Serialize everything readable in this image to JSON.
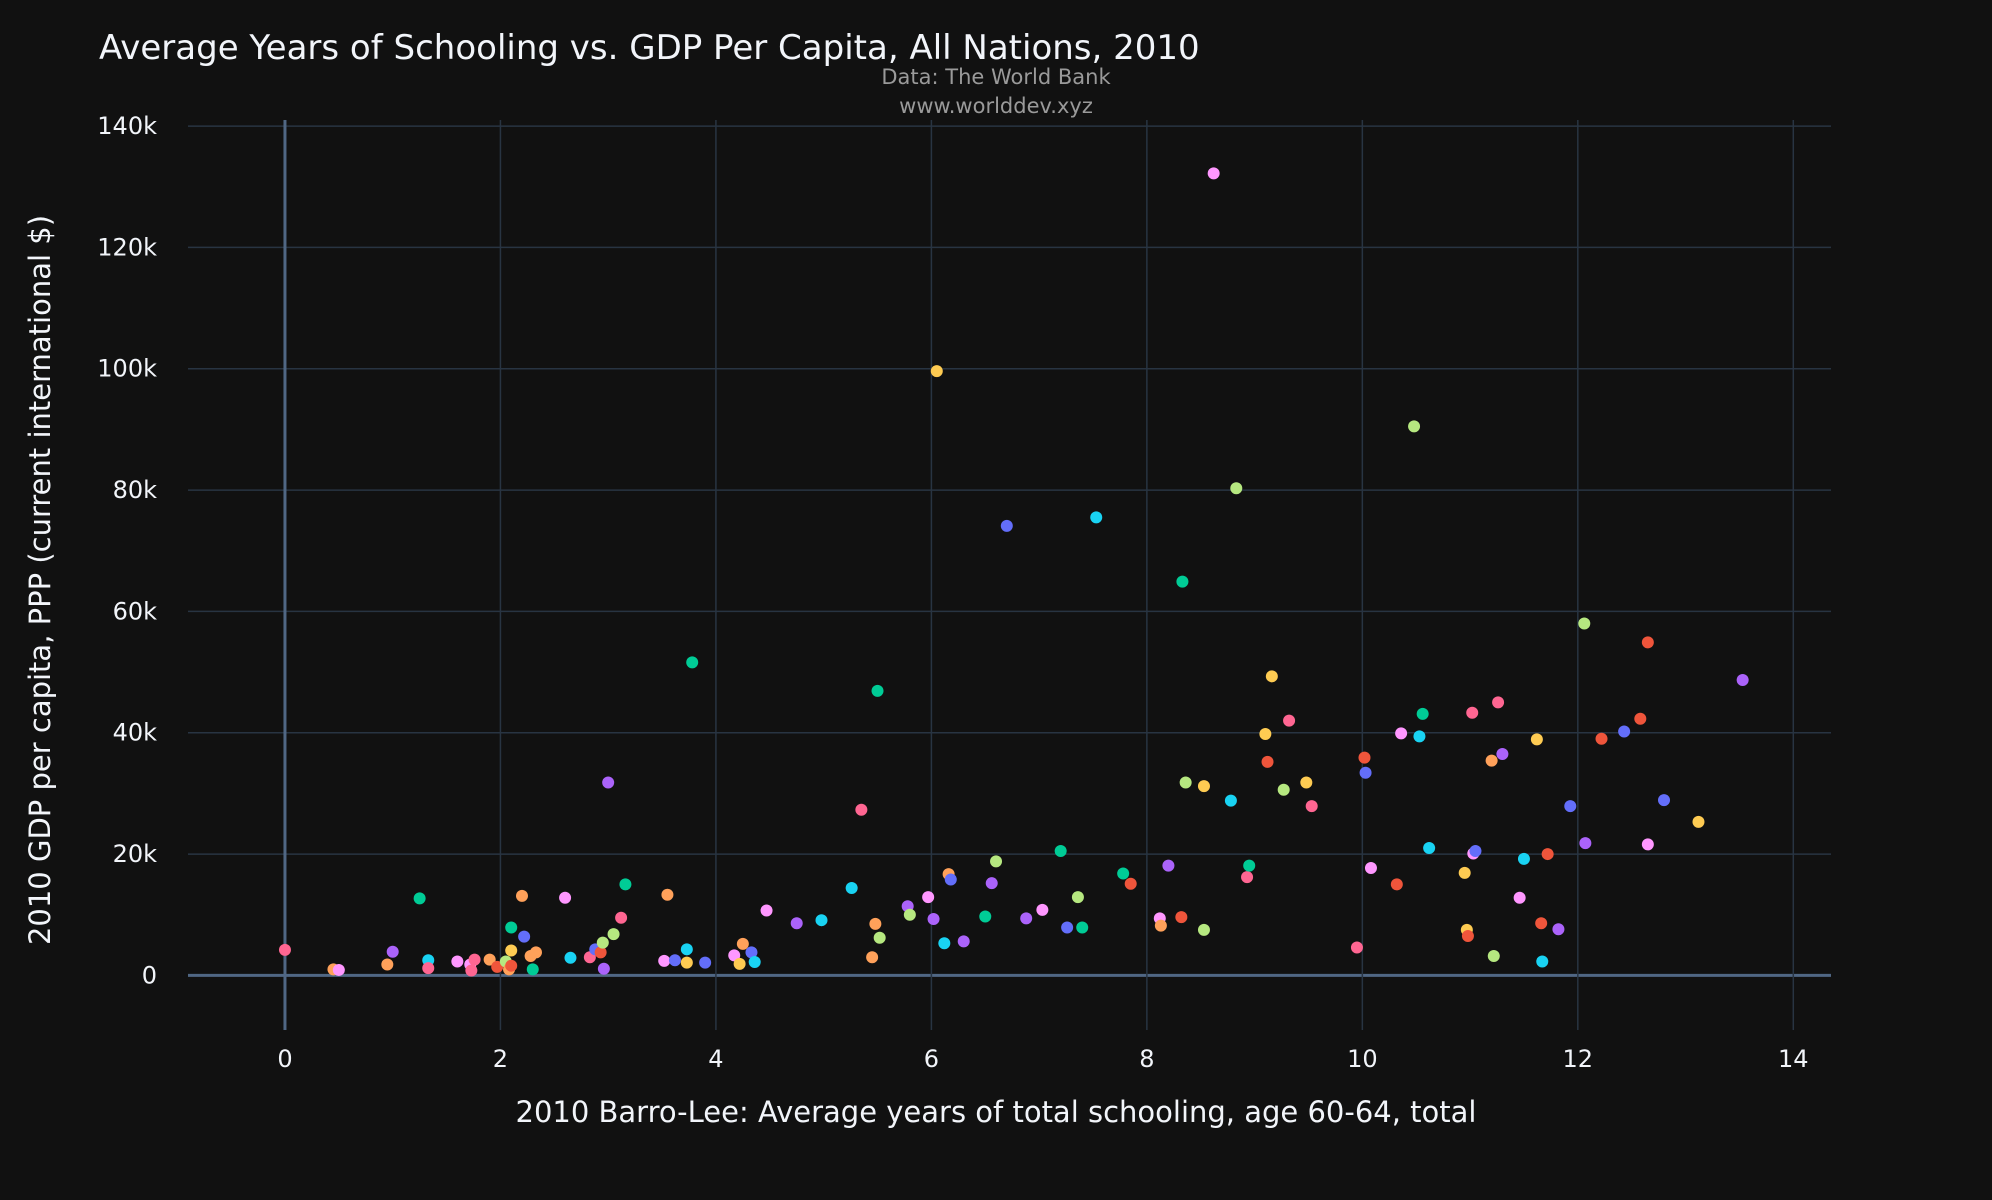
{
  "chart_data": {
    "type": "scatter",
    "title": "Average Years of Schooling vs. GDP Per Capita, All Nations, 2010",
    "subtitle_lines": [
      "Data: The World Bank",
      "www.worlddev.xyz"
    ],
    "xlabel": "2010 Barro-Lee: Average years of total schooling, age 60-64, total",
    "ylabel": "2010 GDP per capita, PPP (current international $)",
    "xlim": [
      -0.9,
      14.35
    ],
    "ylim": [
      -9000,
      141000
    ],
    "x_ticks": [
      {
        "v": 0,
        "label": "0"
      },
      {
        "v": 2,
        "label": "2"
      },
      {
        "v": 4,
        "label": "4"
      },
      {
        "v": 6,
        "label": "6"
      },
      {
        "v": 8,
        "label": "8"
      },
      {
        "v": 10,
        "label": "10"
      },
      {
        "v": 12,
        "label": "12"
      },
      {
        "v": 14,
        "label": "14"
      }
    ],
    "y_ticks": [
      {
        "v": 0,
        "label": "0"
      },
      {
        "v": 20000,
        "label": "20k"
      },
      {
        "v": 40000,
        "label": "40k"
      },
      {
        "v": 60000,
        "label": "60k"
      },
      {
        "v": 80000,
        "label": "80k"
      },
      {
        "v": 100000,
        "label": "100k"
      },
      {
        "v": 120000,
        "label": "120k"
      },
      {
        "v": 140000,
        "label": "140k"
      }
    ],
    "grid": true,
    "legend": "none",
    "colors": {
      "background": "#111111",
      "grid": "#283442",
      "zero_line": "#506784",
      "text": "#f2f5fa",
      "subtitle": "#9a9a9a"
    },
    "points": [
      {
        "x": 0.0,
        "y": 4200,
        "color": "#FF6692"
      },
      {
        "x": 0.45,
        "y": 1000,
        "color": "#FFA15A"
      },
      {
        "x": 0.5,
        "y": 900,
        "color": "#FF97FF"
      },
      {
        "x": 0.95,
        "y": 1800,
        "color": "#FFA15A"
      },
      {
        "x": 1.0,
        "y": 3900,
        "color": "#AB63FA"
      },
      {
        "x": 1.25,
        "y": 12700,
        "color": "#00CC96"
      },
      {
        "x": 1.33,
        "y": 2500,
        "color": "#19D3F3"
      },
      {
        "x": 1.33,
        "y": 1200,
        "color": "#FF6692"
      },
      {
        "x": 1.6,
        "y": 2300,
        "color": "#FF97FF"
      },
      {
        "x": 1.72,
        "y": 1800,
        "color": "#FF97FF"
      },
      {
        "x": 1.73,
        "y": 800,
        "color": "#FF6692"
      },
      {
        "x": 1.76,
        "y": 2600,
        "color": "#FF6692"
      },
      {
        "x": 1.9,
        "y": 2600,
        "color": "#FFA15A"
      },
      {
        "x": 1.97,
        "y": 1400,
        "color": "#EF553B"
      },
      {
        "x": 2.05,
        "y": 2300,
        "color": "#B6E880"
      },
      {
        "x": 2.08,
        "y": 1000,
        "color": "#FFA15A"
      },
      {
        "x": 2.1,
        "y": 1600,
        "color": "#EF553B"
      },
      {
        "x": 2.1,
        "y": 4100,
        "color": "#FECB52"
      },
      {
        "x": 2.1,
        "y": 7900,
        "color": "#00CC96"
      },
      {
        "x": 2.2,
        "y": 13100,
        "color": "#FFA15A"
      },
      {
        "x": 2.22,
        "y": 6400,
        "color": "#636EFA"
      },
      {
        "x": 2.28,
        "y": 3200,
        "color": "#FFA15A"
      },
      {
        "x": 2.3,
        "y": 1000,
        "color": "#00CC96"
      },
      {
        "x": 2.33,
        "y": 3800,
        "color": "#FFA15A"
      },
      {
        "x": 2.6,
        "y": 12800,
        "color": "#FF97FF"
      },
      {
        "x": 2.65,
        "y": 2900,
        "color": "#19D3F3"
      },
      {
        "x": 2.83,
        "y": 3000,
        "color": "#FF6692"
      },
      {
        "x": 2.88,
        "y": 4300,
        "color": "#636EFA"
      },
      {
        "x": 2.93,
        "y": 3800,
        "color": "#EF553B"
      },
      {
        "x": 2.95,
        "y": 5400,
        "color": "#B6E880"
      },
      {
        "x": 2.96,
        "y": 1100,
        "color": "#AB63FA"
      },
      {
        "x": 3.0,
        "y": 31800,
        "color": "#AB63FA"
      },
      {
        "x": 3.05,
        "y": 6800,
        "color": "#B6E880"
      },
      {
        "x": 3.12,
        "y": 9500,
        "color": "#FF6692"
      },
      {
        "x": 3.16,
        "y": 15000,
        "color": "#00CC96"
      },
      {
        "x": 3.52,
        "y": 2400,
        "color": "#FF97FF"
      },
      {
        "x": 3.55,
        "y": 13300,
        "color": "#FFA15A"
      },
      {
        "x": 3.62,
        "y": 2500,
        "color": "#636EFA"
      },
      {
        "x": 3.73,
        "y": 2100,
        "color": "#FECB52"
      },
      {
        "x": 3.73,
        "y": 4300,
        "color": "#19D3F3"
      },
      {
        "x": 3.78,
        "y": 51600,
        "color": "#00CC96"
      },
      {
        "x": 3.9,
        "y": 2100,
        "color": "#636EFA"
      },
      {
        "x": 4.17,
        "y": 3300,
        "color": "#FF97FF"
      },
      {
        "x": 4.22,
        "y": 1900,
        "color": "#FECB52"
      },
      {
        "x": 4.25,
        "y": 5200,
        "color": "#FFA15A"
      },
      {
        "x": 4.33,
        "y": 3800,
        "color": "#636EFA"
      },
      {
        "x": 4.36,
        "y": 2200,
        "color": "#19D3F3"
      },
      {
        "x": 4.47,
        "y": 10700,
        "color": "#FF97FF"
      },
      {
        "x": 4.75,
        "y": 8600,
        "color": "#AB63FA"
      },
      {
        "x": 4.98,
        "y": 9100,
        "color": "#19D3F3"
      },
      {
        "x": 5.26,
        "y": 14400,
        "color": "#19D3F3"
      },
      {
        "x": 5.35,
        "y": 27300,
        "color": "#FF6692"
      },
      {
        "x": 5.45,
        "y": 3000,
        "color": "#FFA15A"
      },
      {
        "x": 5.48,
        "y": 8500,
        "color": "#FFA15A"
      },
      {
        "x": 5.5,
        "y": 46900,
        "color": "#00CC96"
      },
      {
        "x": 5.52,
        "y": 6200,
        "color": "#B6E880"
      },
      {
        "x": 5.78,
        "y": 11400,
        "color": "#AB63FA"
      },
      {
        "x": 5.8,
        "y": 10000,
        "color": "#B6E880"
      },
      {
        "x": 5.97,
        "y": 12900,
        "color": "#FF97FF"
      },
      {
        "x": 6.02,
        "y": 9300,
        "color": "#AB63FA"
      },
      {
        "x": 6.05,
        "y": 99600,
        "color": "#FECB52"
      },
      {
        "x": 6.12,
        "y": 5300,
        "color": "#19D3F3"
      },
      {
        "x": 6.16,
        "y": 16700,
        "color": "#FFA15A"
      },
      {
        "x": 6.18,
        "y": 15800,
        "color": "#636EFA"
      },
      {
        "x": 6.3,
        "y": 5600,
        "color": "#AB63FA"
      },
      {
        "x": 6.5,
        "y": 9700,
        "color": "#00CC96"
      },
      {
        "x": 6.56,
        "y": 15200,
        "color": "#AB63FA"
      },
      {
        "x": 6.6,
        "y": 18800,
        "color": "#B6E880"
      },
      {
        "x": 6.7,
        "y": 74100,
        "color": "#636EFA"
      },
      {
        "x": 6.88,
        "y": 9400,
        "color": "#AB63FA"
      },
      {
        "x": 7.03,
        "y": 10800,
        "color": "#FF97FF"
      },
      {
        "x": 7.2,
        "y": 20500,
        "color": "#00CC96"
      },
      {
        "x": 7.26,
        "y": 7900,
        "color": "#636EFA"
      },
      {
        "x": 7.36,
        "y": 12900,
        "color": "#B6E880"
      },
      {
        "x": 7.4,
        "y": 7900,
        "color": "#00CC96"
      },
      {
        "x": 7.53,
        "y": 75500,
        "color": "#19D3F3"
      },
      {
        "x": 7.78,
        "y": 16800,
        "color": "#00CC96"
      },
      {
        "x": 7.85,
        "y": 15100,
        "color": "#EF553B"
      },
      {
        "x": 8.12,
        "y": 9400,
        "color": "#FF97FF"
      },
      {
        "x": 8.13,
        "y": 8200,
        "color": "#FFA15A"
      },
      {
        "x": 8.2,
        "y": 18100,
        "color": "#AB63FA"
      },
      {
        "x": 8.32,
        "y": 9600,
        "color": "#EF553B"
      },
      {
        "x": 8.33,
        "y": 64900,
        "color": "#00CC96"
      },
      {
        "x": 8.36,
        "y": 31800,
        "color": "#B6E880"
      },
      {
        "x": 8.53,
        "y": 31200,
        "color": "#FECB52"
      },
      {
        "x": 8.53,
        "y": 7500,
        "color": "#B6E880"
      },
      {
        "x": 8.62,
        "y": 132200,
        "color": "#FF97FF"
      },
      {
        "x": 8.78,
        "y": 28800,
        "color": "#19D3F3"
      },
      {
        "x": 8.83,
        "y": 80300,
        "color": "#B6E880"
      },
      {
        "x": 8.93,
        "y": 16200,
        "color": "#FF6692"
      },
      {
        "x": 8.95,
        "y": 18100,
        "color": "#00CC96"
      },
      {
        "x": 9.1,
        "y": 39800,
        "color": "#FECB52"
      },
      {
        "x": 9.12,
        "y": 35200,
        "color": "#EF553B"
      },
      {
        "x": 9.16,
        "y": 49300,
        "color": "#FECB52"
      },
      {
        "x": 9.27,
        "y": 30600,
        "color": "#B6E880"
      },
      {
        "x": 9.32,
        "y": 42000,
        "color": "#FF6692"
      },
      {
        "x": 9.48,
        "y": 31800,
        "color": "#FECB52"
      },
      {
        "x": 9.53,
        "y": 27900,
        "color": "#FF6692"
      },
      {
        "x": 9.95,
        "y": 4600,
        "color": "#FF6692"
      },
      {
        "x": 10.02,
        "y": 35900,
        "color": "#EF553B"
      },
      {
        "x": 10.03,
        "y": 33400,
        "color": "#636EFA"
      },
      {
        "x": 10.08,
        "y": 17700,
        "color": "#FF97FF"
      },
      {
        "x": 10.32,
        "y": 15000,
        "color": "#EF553B"
      },
      {
        "x": 10.36,
        "y": 39900,
        "color": "#FF97FF"
      },
      {
        "x": 10.48,
        "y": 90500,
        "color": "#B6E880"
      },
      {
        "x": 10.53,
        "y": 39400,
        "color": "#19D3F3"
      },
      {
        "x": 10.56,
        "y": 43100,
        "color": "#00CC96"
      },
      {
        "x": 10.62,
        "y": 21000,
        "color": "#19D3F3"
      },
      {
        "x": 10.95,
        "y": 16900,
        "color": "#FECB52"
      },
      {
        "x": 10.97,
        "y": 7500,
        "color": "#FECB52"
      },
      {
        "x": 10.98,
        "y": 6500,
        "color": "#EF553B"
      },
      {
        "x": 11.02,
        "y": 43300,
        "color": "#FF6692"
      },
      {
        "x": 11.03,
        "y": 20100,
        "color": "#FF97FF"
      },
      {
        "x": 11.05,
        "y": 20500,
        "color": "#636EFA"
      },
      {
        "x": 11.2,
        "y": 35400,
        "color": "#FFA15A"
      },
      {
        "x": 11.22,
        "y": 3200,
        "color": "#B6E880"
      },
      {
        "x": 11.26,
        "y": 45000,
        "color": "#FF6692"
      },
      {
        "x": 11.3,
        "y": 36500,
        "color": "#AB63FA"
      },
      {
        "x": 11.46,
        "y": 12800,
        "color": "#FF97FF"
      },
      {
        "x": 11.5,
        "y": 19200,
        "color": "#19D3F3"
      },
      {
        "x": 11.62,
        "y": 38900,
        "color": "#FECB52"
      },
      {
        "x": 11.66,
        "y": 8600,
        "color": "#EF553B"
      },
      {
        "x": 11.67,
        "y": 2300,
        "color": "#19D3F3"
      },
      {
        "x": 11.72,
        "y": 20000,
        "color": "#EF553B"
      },
      {
        "x": 11.82,
        "y": 7600,
        "color": "#AB63FA"
      },
      {
        "x": 11.93,
        "y": 27900,
        "color": "#636EFA"
      },
      {
        "x": 12.06,
        "y": 58000,
        "color": "#B6E880"
      },
      {
        "x": 12.07,
        "y": 21800,
        "color": "#AB63FA"
      },
      {
        "x": 12.22,
        "y": 39000,
        "color": "#EF553B"
      },
      {
        "x": 12.43,
        "y": 40200,
        "color": "#636EFA"
      },
      {
        "x": 12.58,
        "y": 42300,
        "color": "#EF553B"
      },
      {
        "x": 12.65,
        "y": 54900,
        "color": "#EF553B"
      },
      {
        "x": 12.65,
        "y": 21600,
        "color": "#FF97FF"
      },
      {
        "x": 12.8,
        "y": 28900,
        "color": "#636EFA"
      },
      {
        "x": 13.12,
        "y": 25300,
        "color": "#FECB52"
      },
      {
        "x": 13.53,
        "y": 48700,
        "color": "#AB63FA"
      }
    ]
  }
}
